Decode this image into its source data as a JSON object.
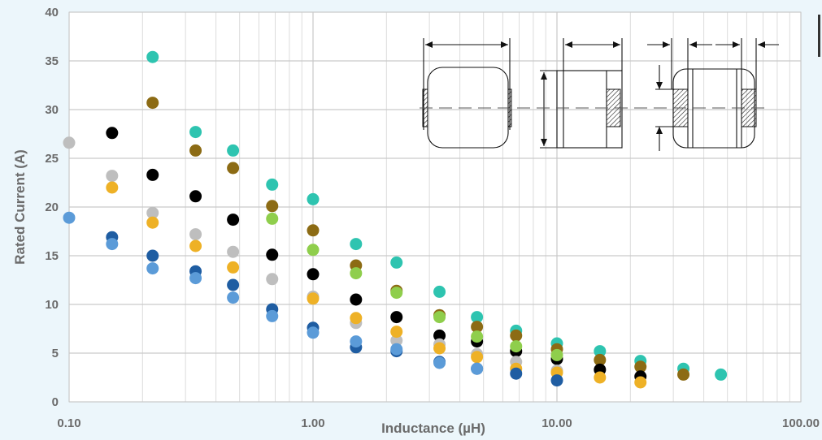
{
  "chart_data": {
    "type": "scatter",
    "title": "",
    "xlabel": "Inductance (µH)",
    "ylabel": "Rated Current (A)",
    "x_scale": "log",
    "xlim": [
      0.1,
      100
    ],
    "ylim": [
      0,
      40
    ],
    "x_ticks": [
      0.1,
      1,
      10,
      100
    ],
    "x_tick_labels": [
      "0.10",
      "1.00",
      "10.00",
      "100.00"
    ],
    "y_ticks": [
      0,
      5,
      10,
      15,
      20,
      25,
      30,
      35,
      40
    ],
    "y_tick_labels": [
      "0",
      "5",
      "10",
      "15",
      "20",
      "25",
      "30",
      "35",
      "40"
    ],
    "grid": true,
    "legend": "none",
    "series": [
      {
        "color": "#2ec4b0",
        "points": [
          [
            0.22,
            35.4
          ],
          [
            0.33,
            27.7
          ],
          [
            0.47,
            25.8
          ],
          [
            0.68,
            22.3
          ],
          [
            1.0,
            20.8
          ],
          [
            1.5,
            16.2
          ],
          [
            2.2,
            14.3
          ],
          [
            3.3,
            11.3
          ],
          [
            4.7,
            8.7
          ],
          [
            6.8,
            7.3
          ],
          [
            10,
            6.0
          ],
          [
            15,
            5.2
          ],
          [
            22,
            4.2
          ],
          [
            33,
            3.4
          ],
          [
            47,
            2.8
          ]
        ]
      },
      {
        "color": "#8c6b14",
        "points": [
          [
            0.22,
            30.7
          ],
          [
            0.33,
            25.8
          ],
          [
            0.47,
            24.0
          ],
          [
            0.68,
            20.1
          ],
          [
            1.0,
            17.6
          ],
          [
            1.5,
            14.0
          ],
          [
            2.2,
            11.4
          ],
          [
            3.3,
            8.9
          ],
          [
            4.7,
            7.7
          ],
          [
            6.8,
            6.8
          ],
          [
            10,
            5.4
          ],
          [
            15,
            4.3
          ],
          [
            22,
            3.6
          ],
          [
            33,
            2.8
          ]
        ]
      },
      {
        "color": "#000000",
        "points": [
          [
            0.15,
            27.6
          ],
          [
            0.22,
            23.3
          ],
          [
            0.33,
            21.1
          ],
          [
            0.47,
            18.7
          ],
          [
            0.68,
            15.1
          ],
          [
            1.0,
            13.1
          ],
          [
            1.5,
            10.5
          ],
          [
            2.2,
            8.7
          ],
          [
            3.3,
            6.8
          ],
          [
            4.7,
            6.2
          ],
          [
            6.8,
            5.2
          ],
          [
            10,
            4.4
          ],
          [
            15,
            3.3
          ],
          [
            22,
            2.6
          ]
        ]
      },
      {
        "color": "#8fce4c",
        "points": [
          [
            0.68,
            18.8
          ],
          [
            1.0,
            15.6
          ],
          [
            1.5,
            13.2
          ],
          [
            2.2,
            11.2
          ],
          [
            3.3,
            8.7
          ],
          [
            4.7,
            6.7
          ],
          [
            6.8,
            5.7
          ],
          [
            10,
            4.8
          ]
        ]
      },
      {
        "color": "#bebebe",
        "points": [
          [
            0.1,
            26.6
          ],
          [
            0.15,
            23.2
          ],
          [
            0.22,
            19.4
          ],
          [
            0.33,
            17.2
          ],
          [
            0.47,
            15.4
          ],
          [
            0.68,
            12.6
          ],
          [
            1.0,
            10.8
          ],
          [
            1.5,
            8.1
          ],
          [
            2.2,
            6.3
          ],
          [
            3.3,
            5.9
          ],
          [
            4.7,
            4.9
          ],
          [
            6.8,
            4.1
          ],
          [
            10,
            3.2
          ]
        ]
      },
      {
        "color": "#eeb126",
        "points": [
          [
            0.15,
            22.0
          ],
          [
            0.22,
            18.4
          ],
          [
            0.33,
            16.0
          ],
          [
            0.47,
            13.8
          ],
          [
            1.0,
            10.6
          ],
          [
            1.5,
            8.6
          ],
          [
            2.2,
            7.2
          ],
          [
            3.3,
            5.5
          ],
          [
            4.7,
            4.6
          ],
          [
            6.8,
            3.4
          ],
          [
            10,
            3.0
          ],
          [
            15,
            2.5
          ],
          [
            22,
            2.0
          ]
        ]
      },
      {
        "color": "#1f5da2",
        "points": [
          [
            0.15,
            16.9
          ],
          [
            0.22,
            15.0
          ],
          [
            0.33,
            13.4
          ],
          [
            0.47,
            12.0
          ],
          [
            0.68,
            9.5
          ],
          [
            1.0,
            7.6
          ],
          [
            1.5,
            5.6
          ],
          [
            2.2,
            5.2
          ],
          [
            3.3,
            4.1
          ],
          [
            4.7,
            3.4
          ],
          [
            6.8,
            2.9
          ],
          [
            10,
            2.2
          ]
        ]
      },
      {
        "color": "#5b9bd8",
        "points": [
          [
            0.1,
            18.9
          ],
          [
            0.15,
            16.2
          ],
          [
            0.22,
            13.7
          ],
          [
            0.33,
            12.7
          ],
          [
            0.47,
            10.7
          ],
          [
            0.68,
            8.8
          ],
          [
            1.0,
            7.1
          ],
          [
            1.5,
            6.2
          ],
          [
            2.2,
            5.4
          ],
          [
            3.3,
            4.0
          ],
          [
            4.7,
            3.4
          ]
        ]
      }
    ]
  }
}
